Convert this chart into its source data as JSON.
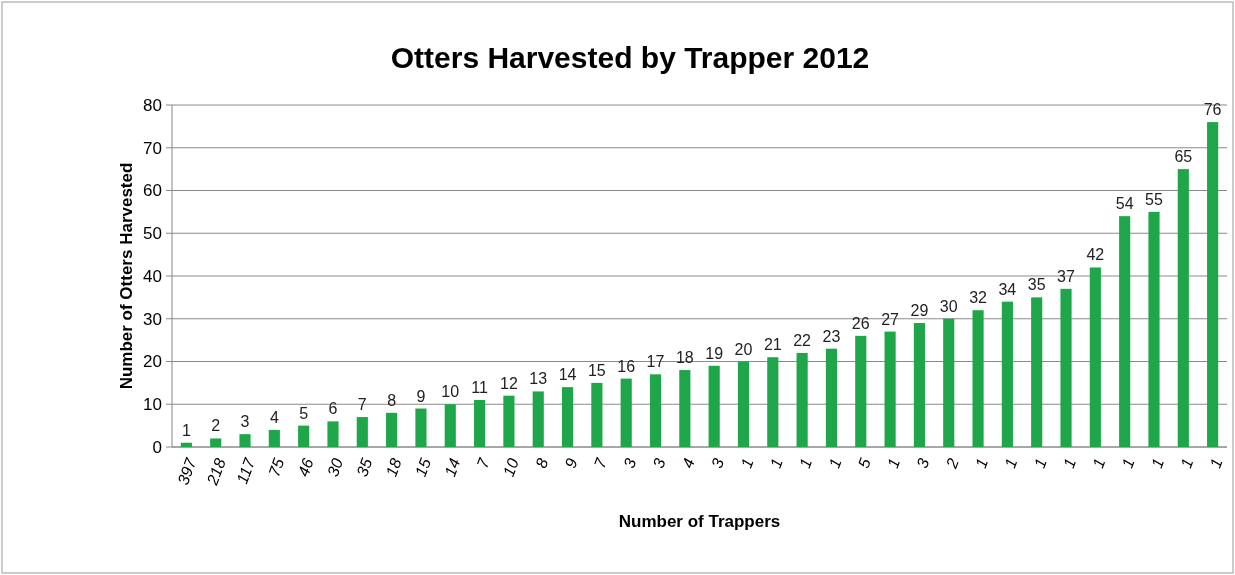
{
  "chart_data": {
    "type": "bar",
    "title": "Otters Harvested by Trapper 2012",
    "xlabel": "Number of Trappers",
    "ylabel": "Number of Otters Harvested",
    "categories": [
      "397",
      "218",
      "117",
      "75",
      "46",
      "30",
      "35",
      "18",
      "15",
      "14",
      "7",
      "10",
      "8",
      "9",
      "7",
      "3",
      "3",
      "4",
      "3",
      "1",
      "1",
      "1",
      "1",
      "5",
      "1",
      "3",
      "2",
      "1",
      "1",
      "1",
      "1",
      "1",
      "1",
      "1",
      "1",
      "1"
    ],
    "values": [
      1,
      2,
      3,
      4,
      5,
      6,
      7,
      8,
      9,
      10,
      11,
      12,
      13,
      14,
      15,
      16,
      17,
      18,
      19,
      20,
      21,
      22,
      23,
      26,
      27,
      29,
      30,
      32,
      34,
      35,
      37,
      42,
      54,
      55,
      65,
      76
    ],
    "color": "#1fa64a",
    "ylim": [
      0,
      80
    ],
    "yticks": [
      0,
      10,
      20,
      30,
      40,
      50,
      60,
      70,
      80
    ],
    "grid": "y",
    "data_labels": true
  }
}
